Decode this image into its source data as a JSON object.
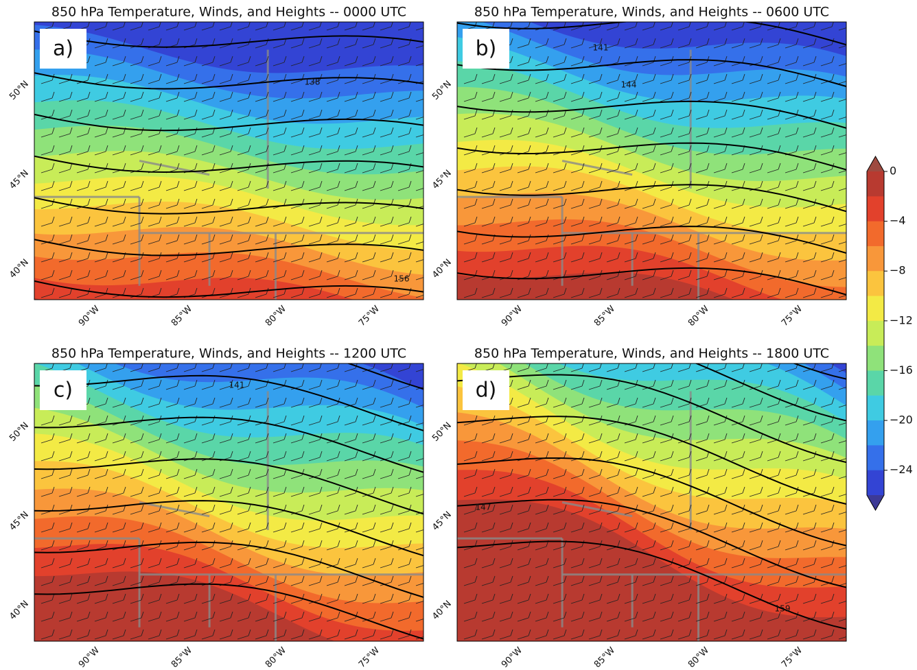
{
  "panels": [
    {
      "label": "a)",
      "title": "850 hPa Temperature, Winds, and Heights -- 0000 UTC",
      "contour_labels": [
        138,
        156
      ]
    },
    {
      "label": "b)",
      "title": "850 hPa Temperature, Winds, and Heights -- 0600 UTC",
      "contour_labels": [
        141,
        144
      ]
    },
    {
      "label": "c)",
      "title": "850 hPa Temperature, Winds, and Heights -- 1200 UTC",
      "contour_labels": [
        141
      ]
    },
    {
      "label": "d)",
      "title": "850 hPa Temperature, Winds, and Heights -- 1800 UTC",
      "contour_labels": [
        147,
        159
      ]
    }
  ],
  "lat_labels": [
    "50°N",
    "45°N",
    "40°N"
  ],
  "lon_labels": [
    "90°W",
    "85°W",
    "80°W",
    "75°W"
  ],
  "colorbar": {
    "range": [
      -26,
      0
    ],
    "ticks": [
      0,
      {
        "value": -4,
        "label": "−4"
      },
      {
        "value": -8,
        "label": "−8"
      },
      {
        "value": -12,
        "label": "−12"
      },
      {
        "value": -16,
        "label": "−16"
      },
      {
        "value": -20,
        "label": "−20"
      },
      {
        "value": -24,
        "label": "−24"
      }
    ],
    "colors": [
      "#b83a30",
      "#e2412c",
      "#f26a2c",
      "#f8973a",
      "#fbc43e",
      "#f3ea45",
      "#c8ec58",
      "#8fe27a",
      "#5ad6a8",
      "#3fcbe2",
      "#34a0ee",
      "#3570ea",
      "#3344d4"
    ],
    "extend_colors": [
      "#9e4a40",
      "#3d3a96"
    ]
  }
}
